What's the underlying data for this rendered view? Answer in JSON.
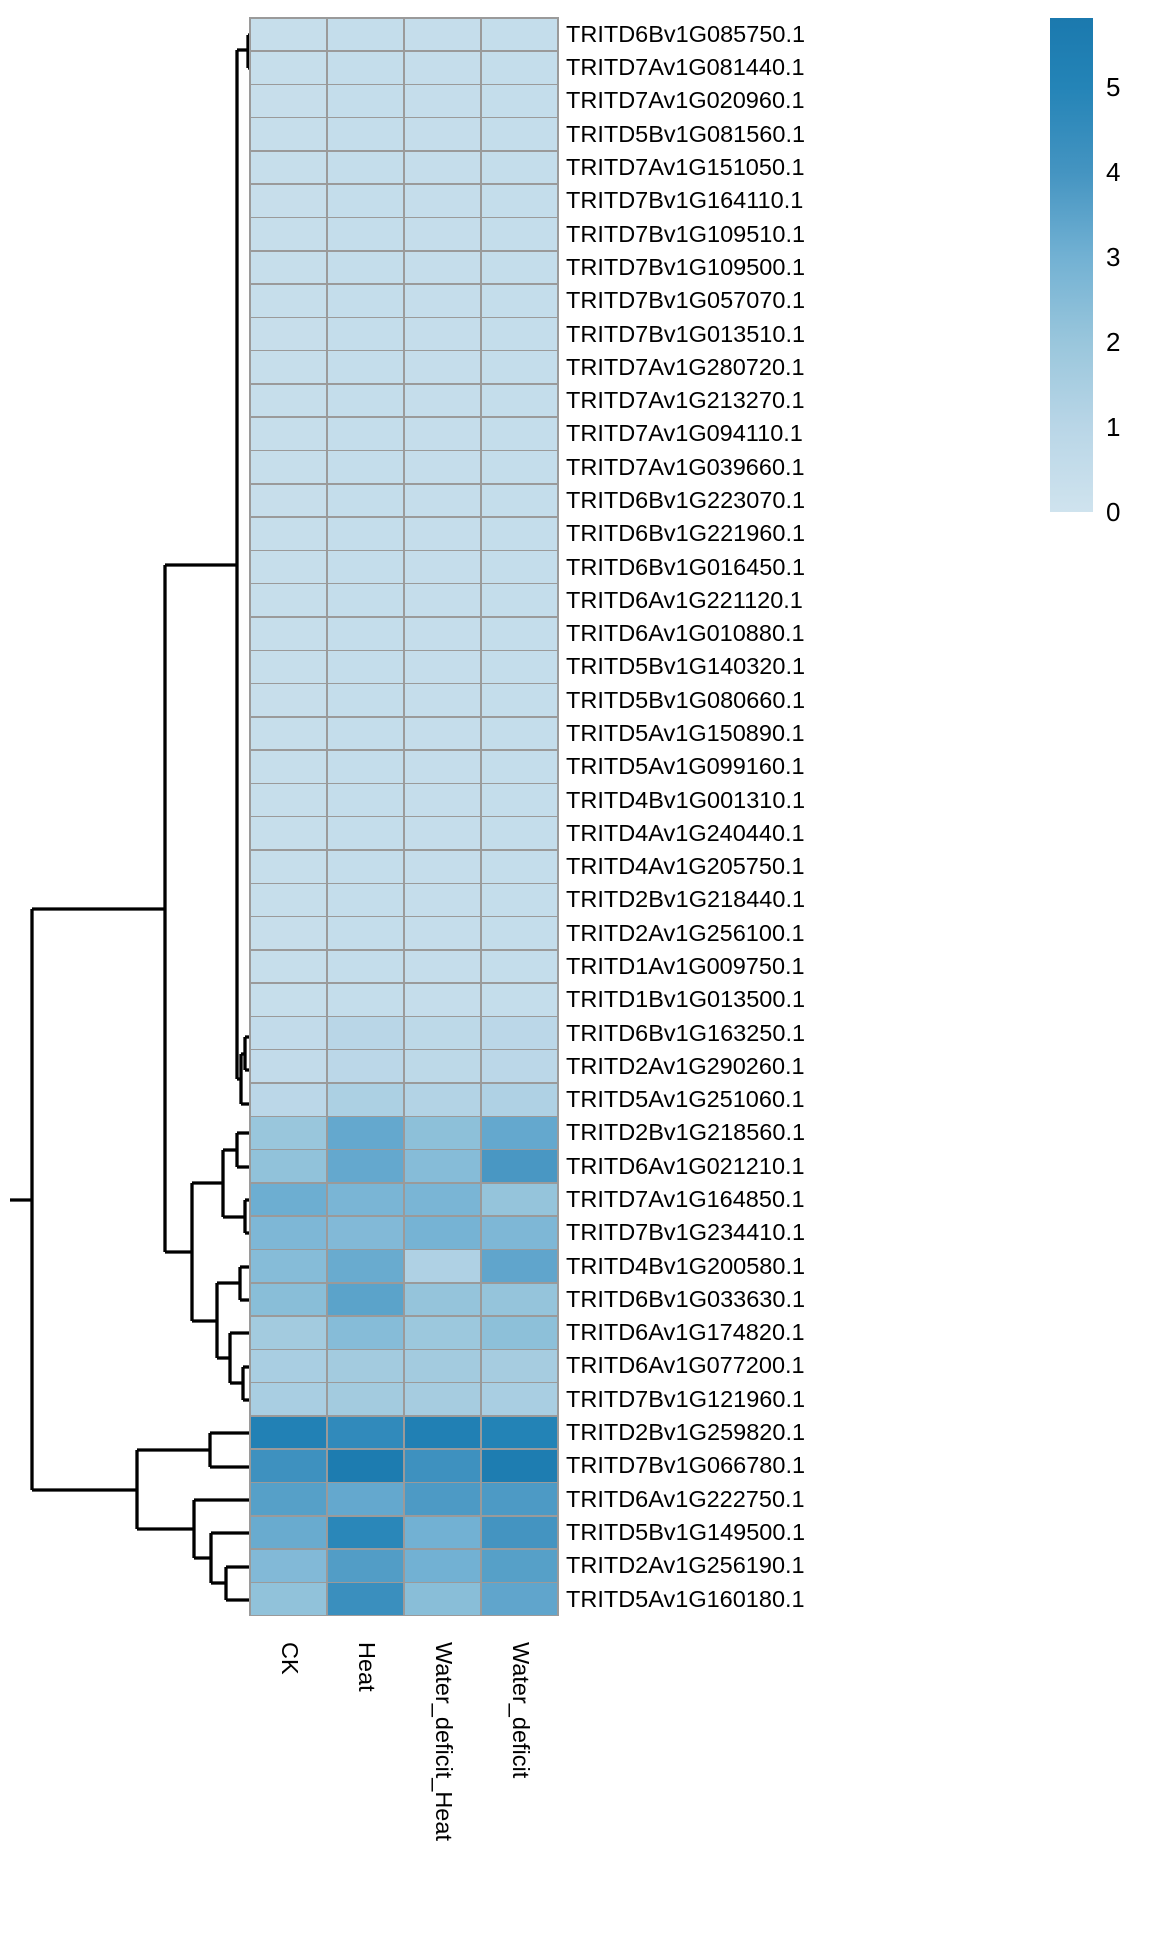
{
  "chart_data": {
    "type": "heatmap",
    "title": "",
    "columns": [
      "CK",
      "Heat",
      "Water_deficit_Heat",
      "Water_deficit"
    ],
    "rows": [
      "TRITD6Bv1G085750.1",
      "TRITD7Av1G081440.1",
      "TRITD7Av1G020960.1",
      "TRITD5Bv1G081560.1",
      "TRITD7Av1G151050.1",
      "TRITD7Bv1G164110.1",
      "TRITD7Bv1G109510.1",
      "TRITD7Bv1G109500.1",
      "TRITD7Bv1G057070.1",
      "TRITD7Bv1G013510.1",
      "TRITD7Av1G280720.1",
      "TRITD7Av1G213270.1",
      "TRITD7Av1G094110.1",
      "TRITD7Av1G039660.1",
      "TRITD6Bv1G223070.1",
      "TRITD6Bv1G221960.1",
      "TRITD6Bv1G016450.1",
      "TRITD6Av1G221120.1",
      "TRITD6Av1G010880.1",
      "TRITD5Bv1G140320.1",
      "TRITD5Bv1G080660.1",
      "TRITD5Av1G150890.1",
      "TRITD5Av1G099160.1",
      "TRITD4Bv1G001310.1",
      "TRITD4Av1G240440.1",
      "TRITD4Av1G205750.1",
      "TRITD2Bv1G218440.1",
      "TRITD2Av1G256100.1",
      "TRITD1Av1G009750.1",
      "TRITD1Bv1G013500.1",
      "TRITD6Bv1G163250.1",
      "TRITD2Av1G290260.1",
      "TRITD5Av1G251060.1",
      "TRITD2Bv1G218560.1",
      "TRITD6Av1G021210.1",
      "TRITD7Av1G164850.1",
      "TRITD7Bv1G234410.1",
      "TRITD4Bv1G200580.1",
      "TRITD6Bv1G033630.1",
      "TRITD6Av1G174820.1",
      "TRITD6Av1G077200.1",
      "TRITD7Bv1G121960.1",
      "TRITD2Bv1G259820.1",
      "TRITD7Bv1G066780.1",
      "TRITD6Av1G222750.1",
      "TRITD5Bv1G149500.1",
      "TRITD2Av1G256190.1",
      "TRITD5Av1G160180.1"
    ],
    "values": [
      [
        0.4,
        0.5,
        0.45,
        0.5
      ],
      [
        0.4,
        0.5,
        0.45,
        0.5
      ],
      [
        0.38,
        0.48,
        0.45,
        0.48
      ],
      [
        0.4,
        0.5,
        0.45,
        0.5
      ],
      [
        0.4,
        0.48,
        0.45,
        0.5
      ],
      [
        0.38,
        0.5,
        0.45,
        0.48
      ],
      [
        0.4,
        0.5,
        0.45,
        0.5
      ],
      [
        0.4,
        0.48,
        0.45,
        0.5
      ],
      [
        0.4,
        0.5,
        0.45,
        0.5
      ],
      [
        0.38,
        0.5,
        0.45,
        0.48
      ],
      [
        0.4,
        0.5,
        0.45,
        0.5
      ],
      [
        0.4,
        0.5,
        0.45,
        0.5
      ],
      [
        0.4,
        0.48,
        0.45,
        0.5
      ],
      [
        0.4,
        0.5,
        0.45,
        0.5
      ],
      [
        0.38,
        0.5,
        0.45,
        0.5
      ],
      [
        0.4,
        0.5,
        0.45,
        0.48
      ],
      [
        0.4,
        0.5,
        0.45,
        0.5
      ],
      [
        0.4,
        0.5,
        0.45,
        0.5
      ],
      [
        0.4,
        0.48,
        0.45,
        0.5
      ],
      [
        0.4,
        0.5,
        0.45,
        0.5
      ],
      [
        0.38,
        0.5,
        0.45,
        0.5
      ],
      [
        0.4,
        0.5,
        0.45,
        0.5
      ],
      [
        0.4,
        0.5,
        0.45,
        0.48
      ],
      [
        0.4,
        0.5,
        0.45,
        0.5
      ],
      [
        0.4,
        0.48,
        0.45,
        0.5
      ],
      [
        0.4,
        0.5,
        0.45,
        0.5
      ],
      [
        0.4,
        0.5,
        0.45,
        0.5
      ],
      [
        0.38,
        0.5,
        0.45,
        0.5
      ],
      [
        0.4,
        0.5,
        0.45,
        0.5
      ],
      [
        0.4,
        0.5,
        0.45,
        0.5
      ],
      [
        0.6,
        1.0,
        0.8,
        0.9
      ],
      [
        0.6,
        0.9,
        0.8,
        0.9
      ],
      [
        0.9,
        1.4,
        1.2,
        1.3
      ],
      [
        2.0,
        3.3,
        2.3,
        3.3
      ],
      [
        2.2,
        3.3,
        2.5,
        3.9
      ],
      [
        3.1,
        2.8,
        2.8,
        2.1
      ],
      [
        2.7,
        2.6,
        2.9,
        2.7
      ],
      [
        2.5,
        3.2,
        1.3,
        3.4
      ],
      [
        2.4,
        3.5,
        2.1,
        2.1
      ],
      [
        1.7,
        2.5,
        1.9,
        2.3
      ],
      [
        1.5,
        1.7,
        1.7,
        1.6
      ],
      [
        1.5,
        1.7,
        1.6,
        1.5
      ],
      [
        5.2,
        4.6,
        5.3,
        5.1
      ],
      [
        4.2,
        5.6,
        4.2,
        5.5
      ],
      [
        3.6,
        3.3,
        3.8,
        3.8
      ],
      [
        3.2,
        4.8,
        3.0,
        4.0
      ],
      [
        2.6,
        3.7,
        3.0,
        3.6
      ],
      [
        2.2,
        4.3,
        2.4,
        3.4
      ]
    ],
    "colorbar": {
      "min": 0,
      "max": 5.81,
      "ticks": [
        "5",
        "4",
        "3",
        "2",
        "1",
        "0"
      ],
      "tick_values": [
        5,
        4,
        3,
        2,
        1,
        0
      ],
      "stops": [
        {
          "v": 0.0,
          "c": "#cfe3ee"
        },
        {
          "v": 1.0,
          "c": "#b9d6e7"
        },
        {
          "v": 2.0,
          "c": "#99c6dc"
        },
        {
          "v": 3.0,
          "c": "#72b1d3"
        },
        {
          "v": 4.0,
          "c": "#4494c1"
        },
        {
          "v": 5.0,
          "c": "#2484b7"
        },
        {
          "v": 5.81,
          "c": "#1b79ae"
        }
      ],
      "position": "right"
    },
    "grid_line_color": "#9a9a9a",
    "dendrogram": {
      "orientation": "left-of-rows",
      "line_color": "#000000",
      "segments": [
        [
          248,
          35,
          252,
          35
        ],
        [
          248,
          68,
          252,
          68
        ],
        [
          248,
          35,
          248,
          68
        ],
        [
          237,
          50,
          248,
          50
        ],
        [
          237,
          50,
          237,
          1079
        ],
        [
          245,
          1037,
          252,
          1037
        ],
        [
          245,
          1070,
          252,
          1070
        ],
        [
          245,
          1037,
          245,
          1070
        ],
        [
          241,
          1054,
          245,
          1054
        ],
        [
          241,
          1104,
          252,
          1104
        ],
        [
          241,
          1054,
          241,
          1104
        ],
        [
          237,
          1079,
          241,
          1079
        ],
        [
          165,
          565,
          237,
          565
        ],
        [
          165,
          565,
          165,
          1252
        ],
        [
          165,
          1252,
          192,
          1252
        ],
        [
          192,
          1183,
          192,
          1321
        ],
        [
          192,
          1183,
          223,
          1183
        ],
        [
          192,
          1321,
          217,
          1321
        ],
        [
          223,
          1150,
          223,
          1217
        ],
        [
          223,
          1150,
          237,
          1150
        ],
        [
          223,
          1217,
          245,
          1217
        ],
        [
          237,
          1133,
          237,
          1167
        ],
        [
          237,
          1133,
          252,
          1133
        ],
        [
          237,
          1167,
          252,
          1167
        ],
        [
          245,
          1200,
          245,
          1233
        ],
        [
          245,
          1200,
          252,
          1200
        ],
        [
          245,
          1233,
          252,
          1233
        ],
        [
          217,
          1283,
          217,
          1358
        ],
        [
          217,
          1283,
          240,
          1283
        ],
        [
          217,
          1358,
          230,
          1358
        ],
        [
          240,
          1267,
          240,
          1300
        ],
        [
          240,
          1267,
          252,
          1267
        ],
        [
          240,
          1300,
          252,
          1300
        ],
        [
          230,
          1333,
          230,
          1383
        ],
        [
          230,
          1333,
          252,
          1333
        ],
        [
          230,
          1383,
          243,
          1383
        ],
        [
          243,
          1367,
          243,
          1400
        ],
        [
          243,
          1367,
          252,
          1367
        ],
        [
          243,
          1400,
          252,
          1400
        ],
        [
          32,
          909,
          165,
          909
        ],
        [
          32,
          909,
          32,
          1490
        ],
        [
          32,
          1490,
          137,
          1490
        ],
        [
          10,
          1200,
          32,
          1200
        ],
        [
          137,
          1450,
          137,
          1529
        ],
        [
          137,
          1450,
          210,
          1450
        ],
        [
          137,
          1529,
          194,
          1529
        ],
        [
          210,
          1433,
          210,
          1467
        ],
        [
          210,
          1433,
          252,
          1433
        ],
        [
          210,
          1467,
          252,
          1467
        ],
        [
          194,
          1500,
          194,
          1558
        ],
        [
          194,
          1500,
          252,
          1500
        ],
        [
          194,
          1558,
          211,
          1558
        ],
        [
          211,
          1533,
          211,
          1583
        ],
        [
          211,
          1533,
          252,
          1533
        ],
        [
          211,
          1583,
          226,
          1583
        ],
        [
          226,
          1567,
          226,
          1600
        ],
        [
          226,
          1567,
          252,
          1567
        ],
        [
          226,
          1600,
          252,
          1600
        ]
      ]
    },
    "layout_hints": {
      "row_labels_position": "right",
      "col_labels_rotation_deg": 90,
      "legend_position": "top-right"
    }
  }
}
